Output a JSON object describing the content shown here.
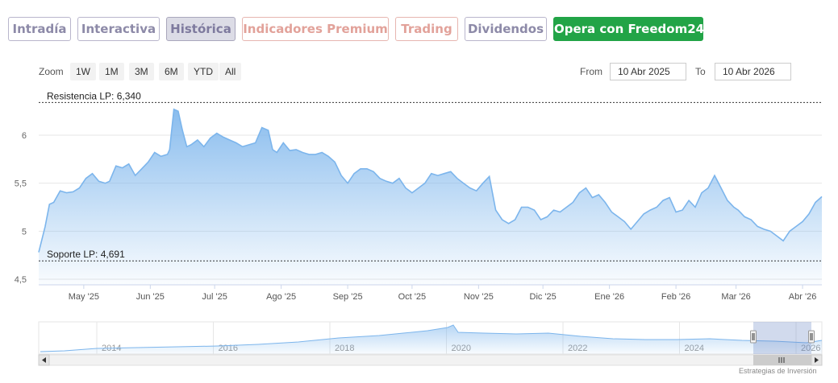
{
  "tabs": [
    {
      "label": "Intradía",
      "style": "purple"
    },
    {
      "label": "Interactiva",
      "style": "purple"
    },
    {
      "label": "Histórica",
      "style": "active"
    },
    {
      "label": "Indicadores Premium",
      "style": "red"
    },
    {
      "label": "Trading",
      "style": "red"
    },
    {
      "label": "Dividendos",
      "style": "purple"
    },
    {
      "label": "Opera con Freedom24",
      "style": "green"
    }
  ],
  "zoom": {
    "label": "Zoom",
    "buttons": [
      "1W",
      "1M",
      "3M",
      "6M",
      "YTD",
      "All"
    ]
  },
  "range": {
    "from_label": "From",
    "from_value": "10 Abr 2025",
    "to_label": "To",
    "to_value": "10 Abr 2026"
  },
  "credit": "Estrategias de Inversión",
  "colors": {
    "line": "#7cb5ec",
    "area_top": "#7cb5ec",
    "green": "#22a447",
    "purple_text": "#8d8aa8",
    "red_text": "#e2a29a"
  },
  "chart_data": {
    "type": "area",
    "y_ticks": [
      "4,5",
      "5",
      "5,5",
      "6"
    ],
    "ylim": [
      4.45,
      6.55
    ],
    "x_ticks": [
      "May '25",
      "Jun '25",
      "Jul '25",
      "Ago '25",
      "Sep '25",
      "Oct '25",
      "Nov '25",
      "Dic '25",
      "Ene '26",
      "Feb '26",
      "Mar '26",
      "Abr '26"
    ],
    "x_tick_dates": [
      "2025-05-01",
      "2025-06-01",
      "2025-07-01",
      "2025-08-01",
      "2025-09-01",
      "2025-10-01",
      "2025-11-01",
      "2025-12-01",
      "2026-01-01",
      "2026-02-01",
      "2026-03-01",
      "2026-04-01"
    ],
    "x_range": [
      "2025-04-10",
      "2026-04-10"
    ],
    "grid": true,
    "legend": "none",
    "plot_lines": [
      {
        "label": "Resistencia LP: 6,340",
        "value": 6.34
      },
      {
        "label": "Soporte LP: 4,691",
        "value": 4.691
      }
    ],
    "series": [
      {
        "x": [
          "2025-04-10",
          "2025-04-13",
          "2025-04-15",
          "2025-04-17",
          "2025-04-20",
          "2025-04-23",
          "2025-04-26",
          "2025-04-29",
          "2025-05-02",
          "2025-05-05",
          "2025-05-08",
          "2025-05-11",
          "2025-05-13",
          "2025-05-16",
          "2025-05-19",
          "2025-05-22",
          "2025-05-25",
          "2025-05-28",
          "2025-05-31",
          "2025-06-03",
          "2025-06-06",
          "2025-06-09",
          "2025-06-10",
          "2025-06-12",
          "2025-06-14",
          "2025-06-16",
          "2025-06-18",
          "2025-06-20",
          "2025-06-23",
          "2025-06-26",
          "2025-06-29",
          "2025-07-02",
          "2025-07-05",
          "2025-07-08",
          "2025-07-11",
          "2025-07-14",
          "2025-07-17",
          "2025-07-20",
          "2025-07-23",
          "2025-07-26",
          "2025-07-28",
          "2025-07-30",
          "2025-08-02",
          "2025-08-05",
          "2025-08-08",
          "2025-08-11",
          "2025-08-14",
          "2025-08-17",
          "2025-08-20",
          "2025-08-23",
          "2025-08-26",
          "2025-08-29",
          "2025-09-01",
          "2025-09-04",
          "2025-09-07",
          "2025-09-10",
          "2025-09-13",
          "2025-09-16",
          "2025-09-19",
          "2025-09-22",
          "2025-09-25",
          "2025-09-28",
          "2025-10-01",
          "2025-10-04",
          "2025-10-07",
          "2025-10-10",
          "2025-10-13",
          "2025-10-16",
          "2025-10-19",
          "2025-10-22",
          "2025-10-25",
          "2025-10-28",
          "2025-10-31",
          "2025-11-03",
          "2025-11-06",
          "2025-11-09",
          "2025-11-12",
          "2025-11-15",
          "2025-11-18",
          "2025-11-21",
          "2025-11-24",
          "2025-11-27",
          "2025-11-30",
          "2025-12-03",
          "2025-12-06",
          "2025-12-09",
          "2025-12-12",
          "2025-12-15",
          "2025-12-18",
          "2025-12-21",
          "2025-12-24",
          "2025-12-27",
          "2025-12-30",
          "2026-01-02",
          "2026-01-05",
          "2026-01-08",
          "2026-01-11",
          "2026-01-14",
          "2026-01-17",
          "2026-01-20",
          "2026-01-23",
          "2026-01-26",
          "2026-01-29",
          "2026-02-01",
          "2026-02-04",
          "2026-02-07",
          "2026-02-10",
          "2026-02-13",
          "2026-02-16",
          "2026-02-19",
          "2026-02-22",
          "2026-02-25",
          "2026-02-28",
          "2026-03-02",
          "2026-03-05",
          "2026-03-08",
          "2026-03-11",
          "2026-03-14",
          "2026-03-17",
          "2026-03-20",
          "2026-03-23",
          "2026-03-26",
          "2026-03-29",
          "2026-04-01",
          "2026-04-04",
          "2026-04-07",
          "2026-04-10"
        ],
        "values": [
          4.78,
          5.05,
          5.28,
          5.3,
          5.42,
          5.4,
          5.41,
          5.45,
          5.55,
          5.6,
          5.52,
          5.5,
          5.52,
          5.68,
          5.66,
          5.7,
          5.58,
          5.65,
          5.72,
          5.82,
          5.78,
          5.8,
          5.85,
          6.27,
          6.25,
          6.05,
          5.88,
          5.9,
          5.95,
          5.88,
          5.97,
          6.02,
          5.98,
          5.95,
          5.92,
          5.88,
          5.9,
          5.92,
          6.08,
          6.05,
          5.85,
          5.82,
          5.92,
          5.84,
          5.85,
          5.82,
          5.8,
          5.8,
          5.82,
          5.78,
          5.72,
          5.58,
          5.5,
          5.6,
          5.65,
          5.65,
          5.62,
          5.55,
          5.52,
          5.5,
          5.55,
          5.45,
          5.4,
          5.45,
          5.5,
          5.6,
          5.58,
          5.6,
          5.62,
          5.55,
          5.5,
          5.45,
          5.42,
          5.5,
          5.57,
          5.22,
          5.12,
          5.08,
          5.12,
          5.25,
          5.25,
          5.22,
          5.12,
          5.15,
          5.22,
          5.2,
          5.25,
          5.3,
          5.4,
          5.45,
          5.35,
          5.38,
          5.3,
          5.2,
          5.15,
          5.1,
          5.02,
          5.1,
          5.18,
          5.22,
          5.25,
          5.32,
          5.35,
          5.2,
          5.22,
          5.32,
          5.25,
          5.4,
          5.45,
          5.58,
          5.45,
          5.32,
          5.25,
          5.22,
          5.15,
          5.12,
          5.05,
          5.02,
          5.0,
          4.95,
          4.9,
          5.0,
          5.05,
          5.1,
          5.18,
          5.3,
          5.36
        ]
      }
    ],
    "navigator": {
      "x_ticks": [
        "2014",
        "2016",
        "2018",
        "2020",
        "2022",
        "2024",
        "2026"
      ]
    }
  }
}
